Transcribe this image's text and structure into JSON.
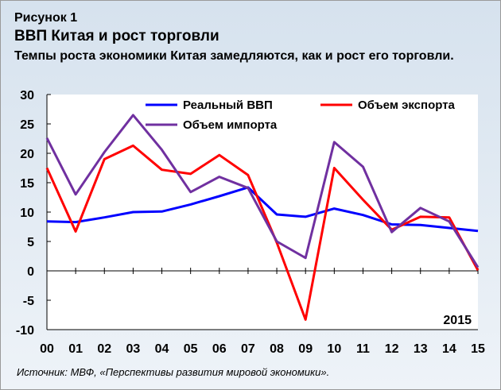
{
  "figure": {
    "label": "Рисунок 1",
    "title": "ВВП Китая и рост торговли",
    "subtitle": "Темпы роста экономики Китая замедляются, как и рост его торговли.",
    "source": "Источник: МВФ, «Перспективы развития мировой экономики»."
  },
  "chart_data": {
    "type": "line",
    "x": [
      "00",
      "01",
      "02",
      "03",
      "04",
      "05",
      "06",
      "07",
      "08",
      "09",
      "10",
      "11",
      "12",
      "13",
      "14",
      "15"
    ],
    "ylim": [
      -10,
      30
    ],
    "yticks": [
      -10,
      -5,
      0,
      5,
      10,
      15,
      20,
      25,
      30
    ],
    "grid": false,
    "annotation": "2015",
    "series": [
      {
        "name": "Реальный ВВП",
        "color": "#0000ff",
        "values": [
          8.4,
          8.3,
          9.1,
          10.0,
          10.1,
          11.3,
          12.7,
          14.2,
          9.6,
          9.2,
          10.6,
          9.5,
          7.9,
          7.8,
          7.3,
          6.8
        ]
      },
      {
        "name": "Объем экспорта",
        "color": "#ff0000",
        "values": [
          17.5,
          6.7,
          19.0,
          21.3,
          17.2,
          16.5,
          19.7,
          16.3,
          4.8,
          -8.3,
          17.5,
          12.1,
          7.0,
          9.2,
          9.1,
          0.1
        ]
      },
      {
        "name": "Объем импорта",
        "color": "#7030a0",
        "values": [
          22.6,
          13.0,
          20.2,
          26.5,
          20.6,
          13.4,
          16.0,
          14.1,
          5.0,
          2.2,
          21.9,
          17.7,
          6.6,
          10.7,
          8.4,
          0.6
        ]
      }
    ]
  }
}
